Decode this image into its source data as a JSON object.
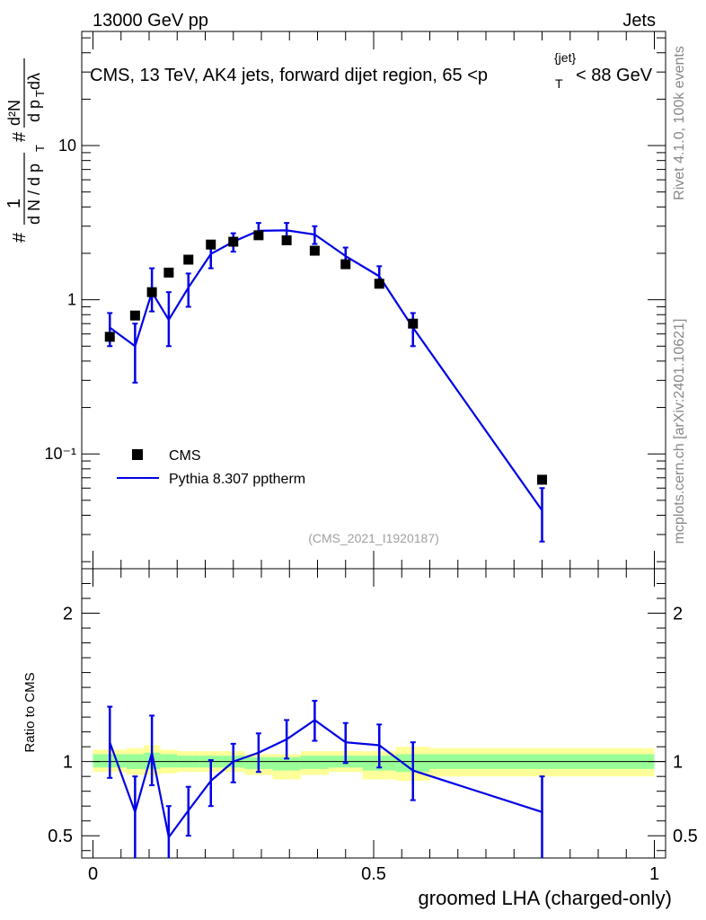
{
  "header": {
    "left": "13000 GeV pp",
    "right": "Jets"
  },
  "side_labels": {
    "version": "Rivet 4.1.0,  100k events",
    "source": "mcplots.cern.ch [arXiv:2401.10621]"
  },
  "chart_data": [
    {
      "type": "scatter",
      "panel": "main",
      "title": "CMS, 13 TeV, AK4 jets, forward dijet region, 65 <p_T^{jet}< 88 GeV",
      "title_parts": {
        "pre": "CMS, 13 TeV, AK4 jets, forward dijet region, 65 <p",
        "sub": "T",
        "sup": "{jet}",
        "post": "< 88 GeV"
      },
      "ylabel": "1/(dN/dp_T) d²N/(dp_T dλ)",
      "ylabel_parts": {
        "hash": "#",
        "num": "1",
        "den": "d N / d p",
        "den_sub": "T",
        "hash2": "#",
        "num2": "d²N",
        "den2": "d p",
        "den2_sub": "T",
        "den2_post": " dλ"
      },
      "yscale": "log",
      "ylim": [
        0.018,
        55
      ],
      "xlim": [
        -0.02,
        1.02
      ],
      "ytick_labels": [
        "10⁻¹",
        "1",
        "10"
      ],
      "yticks": [
        0.1,
        1,
        10
      ],
      "watermark": "(CMS_2021_I1920187)",
      "legend": {
        "placement": "lower-left",
        "entries": [
          "CMS",
          "Pythia 8.307 pptherm"
        ]
      },
      "series": [
        {
          "name": "CMS",
          "kind": "markers",
          "x": [
            0.03,
            0.075,
            0.105,
            0.135,
            0.17,
            0.21,
            0.25,
            0.295,
            0.345,
            0.395,
            0.45,
            0.51,
            0.57,
            0.8
          ],
          "y": [
            0.575,
            0.79,
            1.12,
            1.5,
            1.82,
            2.28,
            2.38,
            2.62,
            2.43,
            2.08,
            1.7,
            1.27,
            0.7,
            0.068
          ]
        },
        {
          "name": "Pythia 8.307 pptherm",
          "kind": "line",
          "color": "#0000e6",
          "x": [
            0.03,
            0.075,
            0.105,
            0.135,
            0.17,
            0.21,
            0.25,
            0.295,
            0.345,
            0.395,
            0.45,
            0.51,
            0.57,
            0.8
          ],
          "y": [
            0.66,
            0.5,
            1.12,
            0.74,
            1.2,
            1.98,
            2.38,
            2.8,
            2.82,
            2.65,
            1.92,
            1.42,
            0.66,
            0.043
          ],
          "err_low": [
            0.5,
            0.29,
            0.84,
            0.5,
            0.9,
            1.6,
            2.05,
            2.5,
            2.5,
            2.3,
            1.65,
            1.2,
            0.5,
            0.027
          ],
          "err_high": [
            0.82,
            0.7,
            1.6,
            1.12,
            1.48,
            2.35,
            2.7,
            3.15,
            3.15,
            3.0,
            2.18,
            1.65,
            0.82,
            0.06
          ]
        }
      ]
    },
    {
      "type": "line",
      "panel": "ratio",
      "xlabel": "groomed LHA (charged-only)",
      "ylabel": "Ratio to CMS",
      "ylim": [
        0.35,
        2.3
      ],
      "xlim": [
        -0.02,
        1.02
      ],
      "yticks": [
        0.5,
        1,
        2
      ],
      "ytick_labels": [
        "0.5",
        "1",
        "2"
      ],
      "xticks": [
        0,
        0.5,
        1
      ],
      "xtick_labels": [
        "0",
        "0.5",
        "1"
      ],
      "bands": {
        "edges": [
          0,
          0.06,
          0.09,
          0.12,
          0.15,
          0.19,
          0.23,
          0.27,
          0.32,
          0.37,
          0.42,
          0.48,
          0.54,
          0.6,
          1.0
        ],
        "yellow_low": [
          0.93,
          0.91,
          0.91,
          0.92,
          0.93,
          0.93,
          0.93,
          0.91,
          0.88,
          0.91,
          0.93,
          0.88,
          0.87,
          0.9
        ],
        "yellow_high": [
          1.08,
          1.09,
          1.11,
          1.08,
          1.07,
          1.07,
          1.07,
          1.05,
          1.05,
          1.07,
          1.07,
          1.07,
          1.1,
          1.09
        ],
        "green_low": [
          0.96,
          0.95,
          0.95,
          0.96,
          0.96,
          0.96,
          0.96,
          0.95,
          0.94,
          0.95,
          0.96,
          0.94,
          0.93,
          0.95
        ],
        "green_high": [
          1.05,
          1.05,
          1.06,
          1.05,
          1.04,
          1.04,
          1.04,
          1.03,
          1.03,
          1.04,
          1.04,
          1.04,
          1.05,
          1.05
        ]
      },
      "series": [
        {
          "name": "Pythia 8.307 pptherm / CMS",
          "color": "#0000e6",
          "x": [
            0.03,
            0.075,
            0.105,
            0.135,
            0.17,
            0.21,
            0.25,
            0.295,
            0.345,
            0.395,
            0.45,
            0.51,
            0.57,
            0.8
          ],
          "y": [
            1.13,
            0.66,
            1.06,
            0.49,
            0.67,
            0.87,
            1.0,
            1.06,
            1.15,
            1.28,
            1.13,
            1.11,
            0.94,
            0.66
          ],
          "err_low": [
            0.89,
            0.3,
            0.84,
            0.3,
            0.5,
            0.7,
            0.86,
            0.93,
            1.02,
            1.14,
            0.99,
            0.96,
            0.74,
            0.3
          ],
          "err_high": [
            1.37,
            0.9,
            1.31,
            0.7,
            0.83,
            1.01,
            1.12,
            1.19,
            1.28,
            1.41,
            1.26,
            1.25,
            1.13,
            0.9
          ]
        }
      ]
    }
  ]
}
